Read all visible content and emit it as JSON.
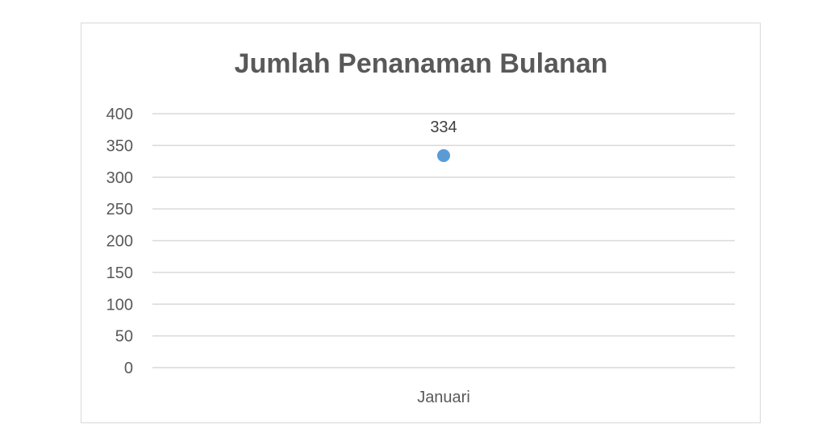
{
  "chart_data": {
    "type": "line",
    "title": "Jumlah Penanaman Bulanan",
    "categories": [
      "Januari"
    ],
    "series": [
      {
        "values": [
          334
        ]
      }
    ],
    "ylim": [
      0,
      400
    ],
    "y_ticks": [
      0,
      50,
      100,
      150,
      200,
      250,
      300,
      350,
      400
    ],
    "grid": true,
    "data_labels": true,
    "colors": {
      "marker": "#5b9bd5",
      "grid": "#d9d9d9",
      "text": "#595959"
    }
  }
}
